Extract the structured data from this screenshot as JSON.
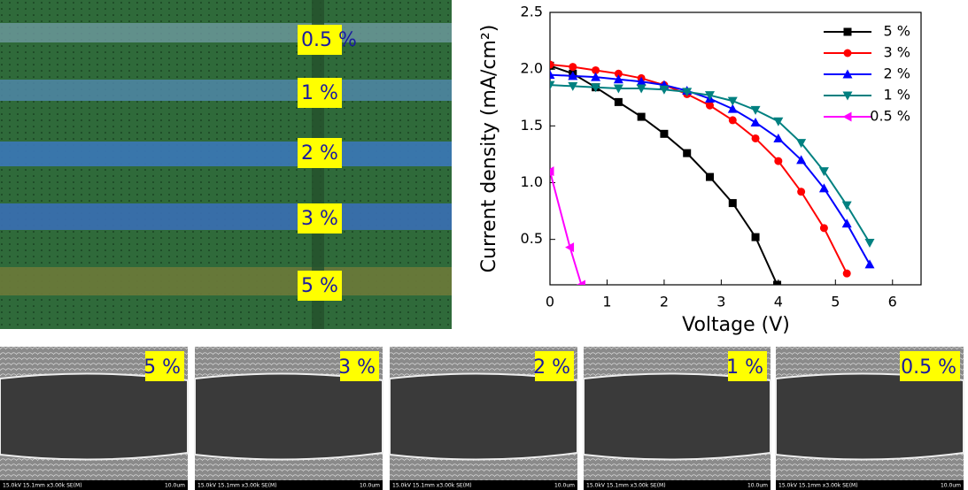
{
  "micrograph": {
    "labels": [
      "0.5 %",
      "1 %",
      "2 %",
      "3 %",
      "5 %"
    ]
  },
  "chart_data": {
    "type": "line",
    "xlabel": "Voltage (V)",
    "ylabel": "Current density (mA/cm²)",
    "xlim": [
      0,
      6.5
    ],
    "ylim": [
      0.1,
      2.5
    ],
    "xticks": [
      0,
      1,
      2,
      3,
      4,
      5,
      6
    ],
    "yticks": [
      0.5,
      {
        "value": 1,
        "label": "1.0"
      },
      1.5,
      {
        "value": 2,
        "label": "2.0"
      },
      2.5
    ],
    "legend": "upper right",
    "series": [
      {
        "name": "5 %",
        "color": "#000000",
        "marker": "square",
        "x": [
          0,
          0.4,
          0.8,
          1.2,
          1.6,
          2.0,
          2.4,
          2.8,
          3.2,
          3.6,
          3.98
        ],
        "values": [
          2.03,
          1.96,
          1.84,
          1.71,
          1.58,
          1.43,
          1.26,
          1.05,
          0.82,
          0.52,
          0.1
        ]
      },
      {
        "name": "3 %",
        "color": "#ff0000",
        "marker": "circle",
        "x": [
          0,
          0.4,
          0.8,
          1.2,
          1.6,
          2.0,
          2.4,
          2.8,
          3.2,
          3.6,
          4.0,
          4.4,
          4.8,
          5.2
        ],
        "values": [
          2.04,
          2.02,
          1.99,
          1.96,
          1.92,
          1.86,
          1.78,
          1.68,
          1.55,
          1.39,
          1.19,
          0.92,
          0.6,
          0.2
        ]
      },
      {
        "name": "2 %",
        "color": "#0000ff",
        "marker": "triangle-up",
        "x": [
          0,
          0.4,
          0.8,
          1.2,
          1.6,
          2.0,
          2.4,
          2.8,
          3.2,
          3.6,
          4.0,
          4.4,
          4.8,
          5.2,
          5.6
        ],
        "values": [
          1.95,
          1.94,
          1.93,
          1.91,
          1.89,
          1.86,
          1.81,
          1.74,
          1.65,
          1.53,
          1.39,
          1.2,
          0.95,
          0.64,
          0.28
        ]
      },
      {
        "name": "1 %",
        "color": "#008080",
        "marker": "triangle-down",
        "x": [
          0,
          0.4,
          0.8,
          1.2,
          1.6,
          2.0,
          2.4,
          2.8,
          3.2,
          3.6,
          4.0,
          4.4,
          4.8,
          5.2,
          5.6
        ],
        "values": [
          1.86,
          1.85,
          1.84,
          1.83,
          1.83,
          1.82,
          1.8,
          1.77,
          1.72,
          1.64,
          1.54,
          1.35,
          1.1,
          0.8,
          0.47
        ]
      },
      {
        "name": "0.5 %",
        "color": "#ff00ff",
        "marker": "triangle-left",
        "x": [
          0,
          0.35,
          0.55
        ],
        "values": [
          1.1,
          0.43,
          0.1
        ]
      }
    ]
  },
  "sem_images": [
    {
      "label": "5 %",
      "info": "15.0kV 15.1mm x3.00k SE(M)",
      "scale": "10.0um"
    },
    {
      "label": "3 %",
      "info": "15.0kV 15.1mm x3.00k SE(M)",
      "scale": "10.0um"
    },
    {
      "label": "2 %",
      "info": "15.0kV 15.1mm x3.00k SE(M)",
      "scale": "10.0um"
    },
    {
      "label": "1 %",
      "info": "15.0kV 15.1mm x3.00k SE(M)",
      "scale": "10.0um"
    },
    {
      "label": "0.5 %",
      "info": "15.0kV 15.1mm x3.00k SE(M)",
      "scale": "10.0um"
    }
  ]
}
